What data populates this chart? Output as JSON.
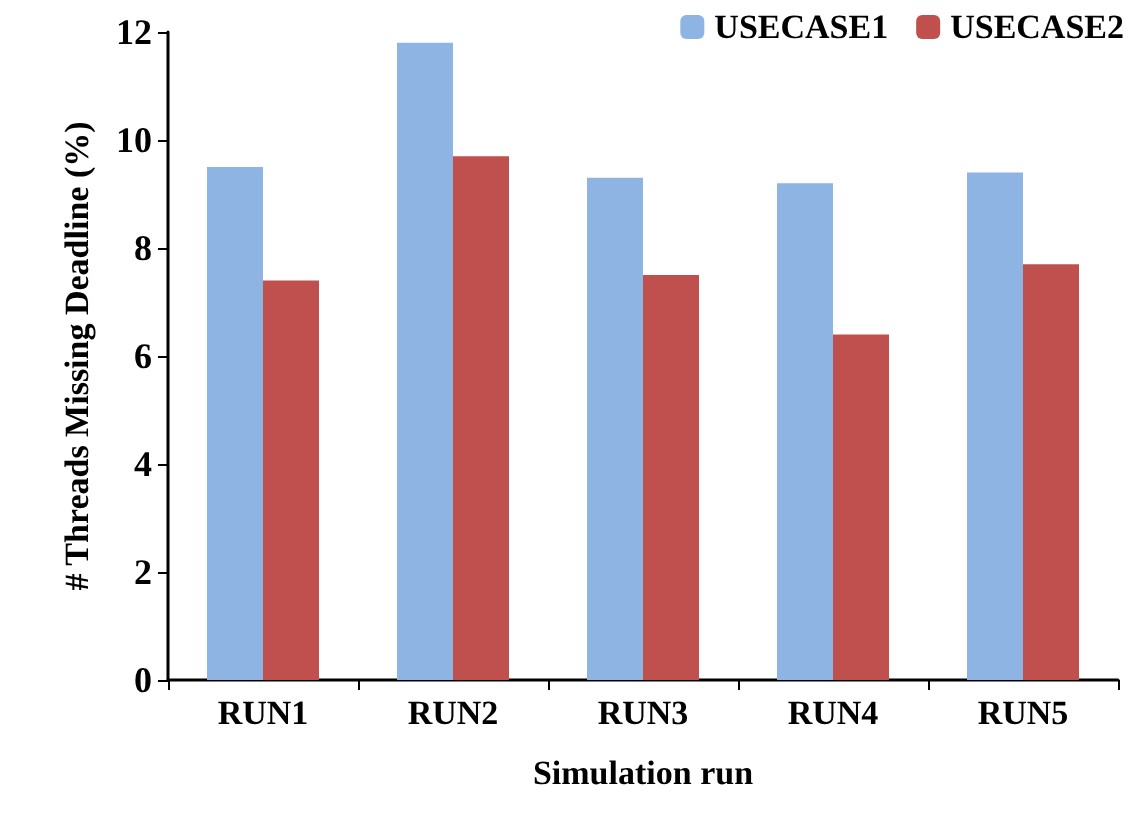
{
  "chart_data": {
    "type": "bar",
    "xlabel": "Simulation run",
    "ylabel": "# Threads Missing Deadline (%)",
    "categories": [
      "RUN1",
      "RUN2",
      "RUN3",
      "RUN4",
      "RUN5"
    ],
    "series": [
      {
        "name": "USECASE1",
        "color": "#8eb4e3",
        "values": [
          9.5,
          11.8,
          9.3,
          9.2,
          9.4
        ]
      },
      {
        "name": "USECASE2",
        "color": "#c0504d",
        "values": [
          7.4,
          9.7,
          7.5,
          6.4,
          7.7
        ]
      }
    ],
    "ylim": [
      0,
      12
    ],
    "yticks": [
      0,
      2,
      4,
      6,
      8,
      10,
      12
    ],
    "grid": false,
    "legend": "top right"
  }
}
